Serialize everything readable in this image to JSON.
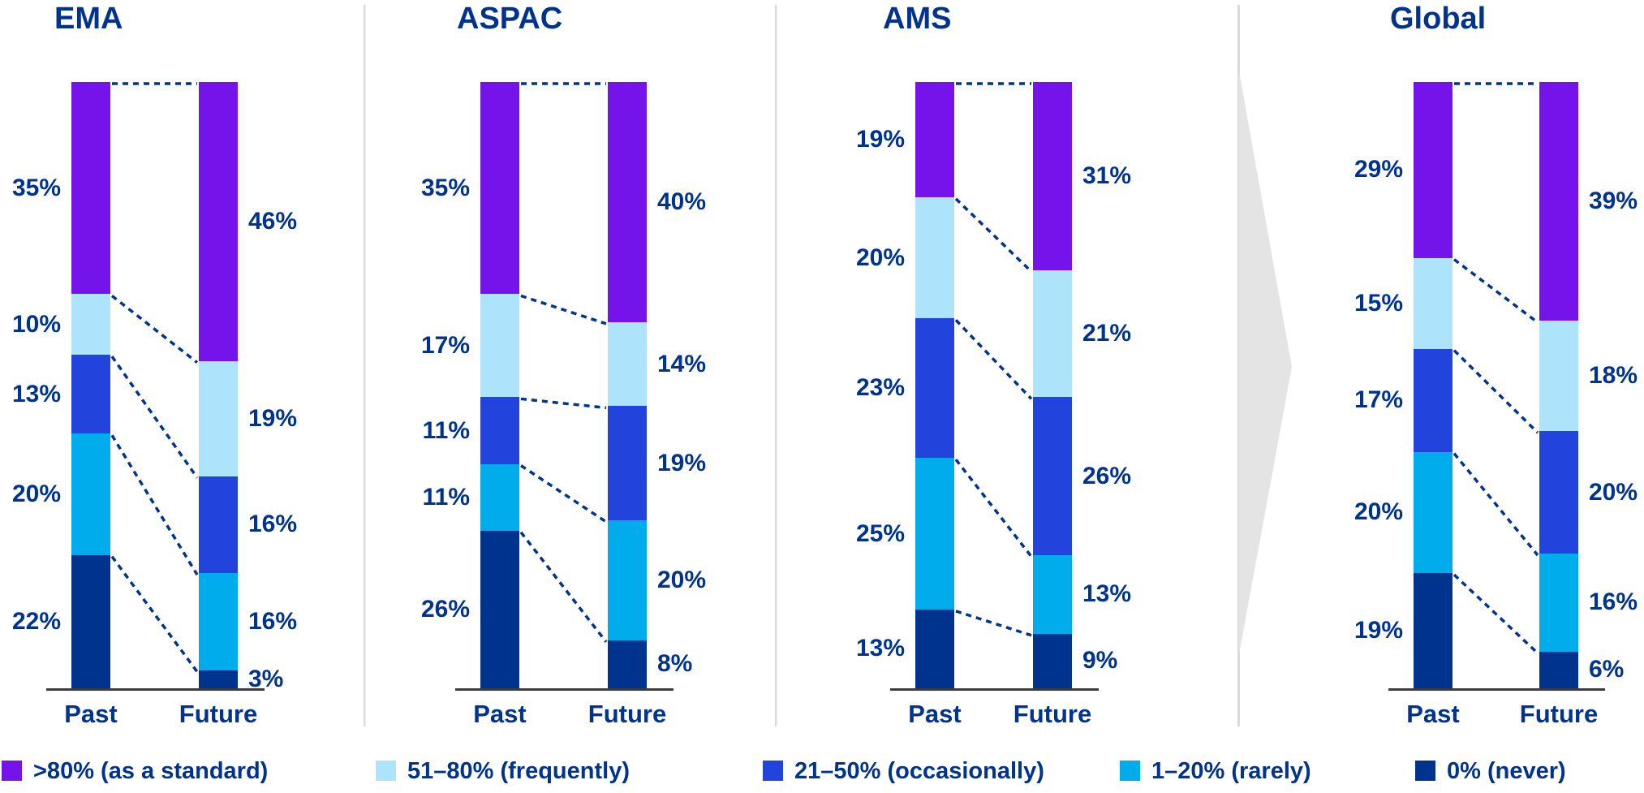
{
  "chart_data": {
    "type": "bar",
    "subtype": "stacked-100-percent-slope",
    "unit": "%",
    "categories": [
      "Past",
      "Future"
    ],
    "grid": false,
    "legend_position": "bottom",
    "legend": [
      {
        "label": ">80% (as a standard)",
        "color": "#7414EA"
      },
      {
        "label": "51–80% (frequently)",
        "color": "#AEE4FB"
      },
      {
        "label": "21–50% (occasionally)",
        "color": "#2344DC"
      },
      {
        "label": "1–20% (rarely)",
        "color": "#00ACEC"
      },
      {
        "label": "0% (never)",
        "color": "#00338D"
      }
    ],
    "groups": [
      {
        "title": "EMA",
        "series_order_top_to_bottom": true,
        "past": [
          35,
          10,
          13,
          20,
          22
        ],
        "future": [
          46,
          19,
          16,
          16,
          3
        ]
      },
      {
        "title": "ASPAC",
        "series_order_top_to_bottom": true,
        "past": [
          35,
          17,
          11,
          11,
          26
        ],
        "future": [
          40,
          14,
          19,
          20,
          8
        ]
      },
      {
        "title": "AMS",
        "series_order_top_to_bottom": true,
        "past": [
          19,
          20,
          23,
          25,
          13
        ],
        "future": [
          31,
          21,
          26,
          13,
          9
        ]
      },
      {
        "title": "Global",
        "series_order_top_to_bottom": true,
        "past": [
          29,
          15,
          17,
          20,
          19
        ],
        "future": [
          39,
          18,
          20,
          16,
          6
        ]
      }
    ],
    "colors": {
      "label_text": "#00338D",
      "connector_dotted": "#00338D",
      "baseline": "#3C3C3C",
      "divider": "#DBDBDB",
      "arrow": "#E4E4E4"
    }
  }
}
